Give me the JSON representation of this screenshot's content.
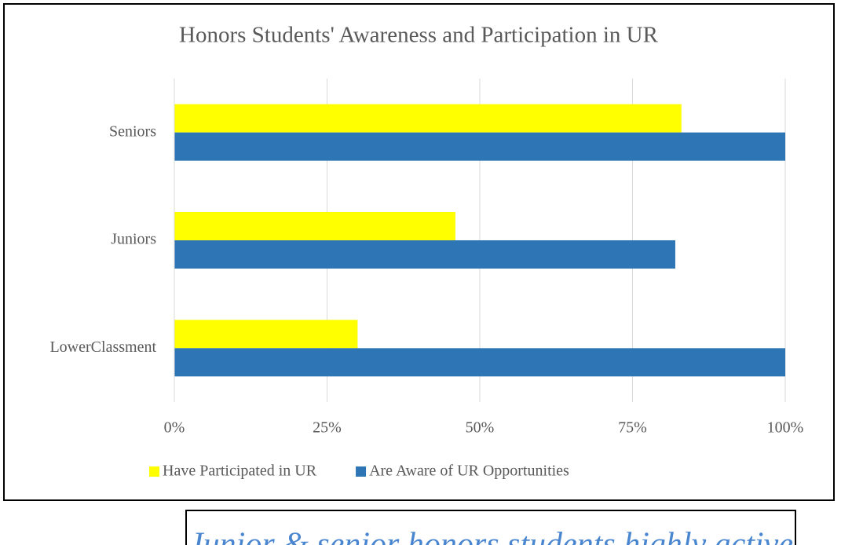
{
  "chart_data": {
    "type": "barh",
    "title": "Honors Students' Awareness and Participation in UR",
    "categories": [
      "Seniors",
      "Juniors",
      "LowerClassment"
    ],
    "series": [
      {
        "name": "Have Participated in UR",
        "color": "#ffff00",
        "values": [
          83,
          46,
          30
        ]
      },
      {
        "name": "Are Aware of UR Opportunities",
        "color": "#2e75b6",
        "values": [
          100,
          82,
          100
        ]
      }
    ],
    "xlim": [
      0,
      100
    ],
    "xticks": [
      {
        "value": 0,
        "label": "0%"
      },
      {
        "value": 25,
        "label": "25%"
      },
      {
        "value": 50,
        "label": "50%"
      },
      {
        "value": 75,
        "label": "75%"
      },
      {
        "value": 100,
        "label": "100%"
      }
    ],
    "grid": true,
    "legend": "bottom",
    "caption": "Junior & senior honors students highly active"
  }
}
